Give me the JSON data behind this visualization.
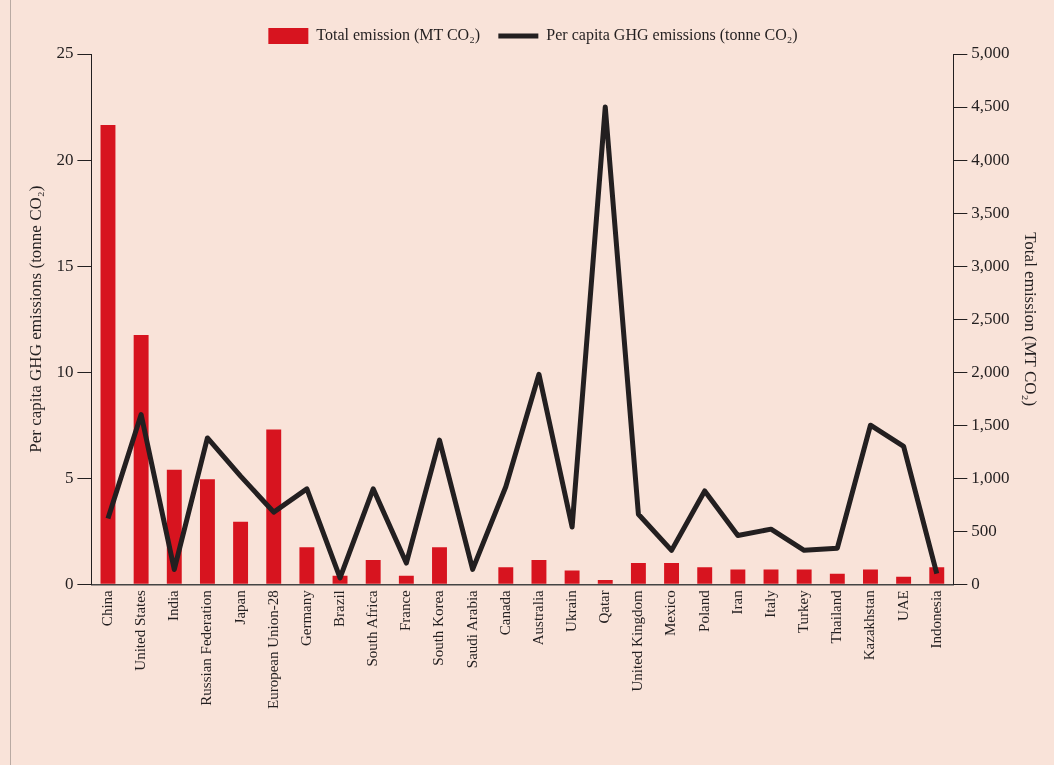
{
  "chart_data": {
    "type": "bar",
    "categories": [
      "China",
      "United States",
      "India",
      "Russian Federation",
      "Japan",
      "European Union-28",
      "Germany",
      "Brazil",
      "South Africa",
      "France",
      "South Korea",
      "Saudi Arabia",
      "Canada",
      "Australia",
      "Ukrain",
      "Qatar",
      "United Kingdom",
      "Mexico",
      "Poland",
      "Iran",
      "Italy",
      "Turkey",
      "Thailand",
      "Kazakhstan",
      "UAE",
      "Indonesia"
    ],
    "series": [
      {
        "name": "Total emission (MT CO₂)",
        "axis": "y2",
        "color": "#d7141f",
        "values": [
          4330,
          2350,
          1080,
          990,
          590,
          1460,
          350,
          80,
          230,
          80,
          350,
          null,
          160,
          230,
          130,
          40,
          200,
          200,
          160,
          140,
          140,
          140,
          100,
          140,
          70,
          160
        ]
      },
      {
        "name": "Per capita GHG emissions (tonne CO₂)",
        "type": "line",
        "axis": "y",
        "color": "#231f20",
        "values": [
          3.1,
          8.0,
          0.7,
          6.9,
          5.1,
          3.4,
          4.5,
          0.3,
          4.5,
          1.0,
          6.8,
          0.7,
          4.6,
          9.9,
          2.7,
          22.5,
          3.3,
          1.6,
          4.4,
          2.3,
          2.6,
          1.6,
          1.7,
          7.5,
          6.5,
          0.5
        ]
      }
    ],
    "ylabel": "Per capita GHG emissions (tonne CO₂)",
    "y2label": "Total emission (MT CO₂)",
    "ylim": [
      0,
      25
    ],
    "yticks": [
      0,
      5,
      10,
      15,
      20,
      25
    ],
    "y2lim": [
      0,
      5000
    ],
    "y2ticks": [
      0,
      {
        "value": 500,
        "label": "500"
      },
      {
        "value": 1000,
        "label": "1,000"
      },
      {
        "value": 1500,
        "label": "1,500"
      },
      {
        "value": 2000,
        "label": "2,000"
      },
      {
        "value": 2500,
        "label": "2,500"
      },
      {
        "value": 3000,
        "label": "3,000"
      },
      {
        "value": 3500,
        "label": "3,500"
      },
      {
        "value": 4000,
        "label": "4,000"
      },
      {
        "value": 4500,
        "label": "4,500"
      },
      {
        "value": 5000,
        "label": "5,000"
      }
    ],
    "grid": false,
    "legend": "top",
    "marker": "none",
    "line_style": "solid"
  }
}
